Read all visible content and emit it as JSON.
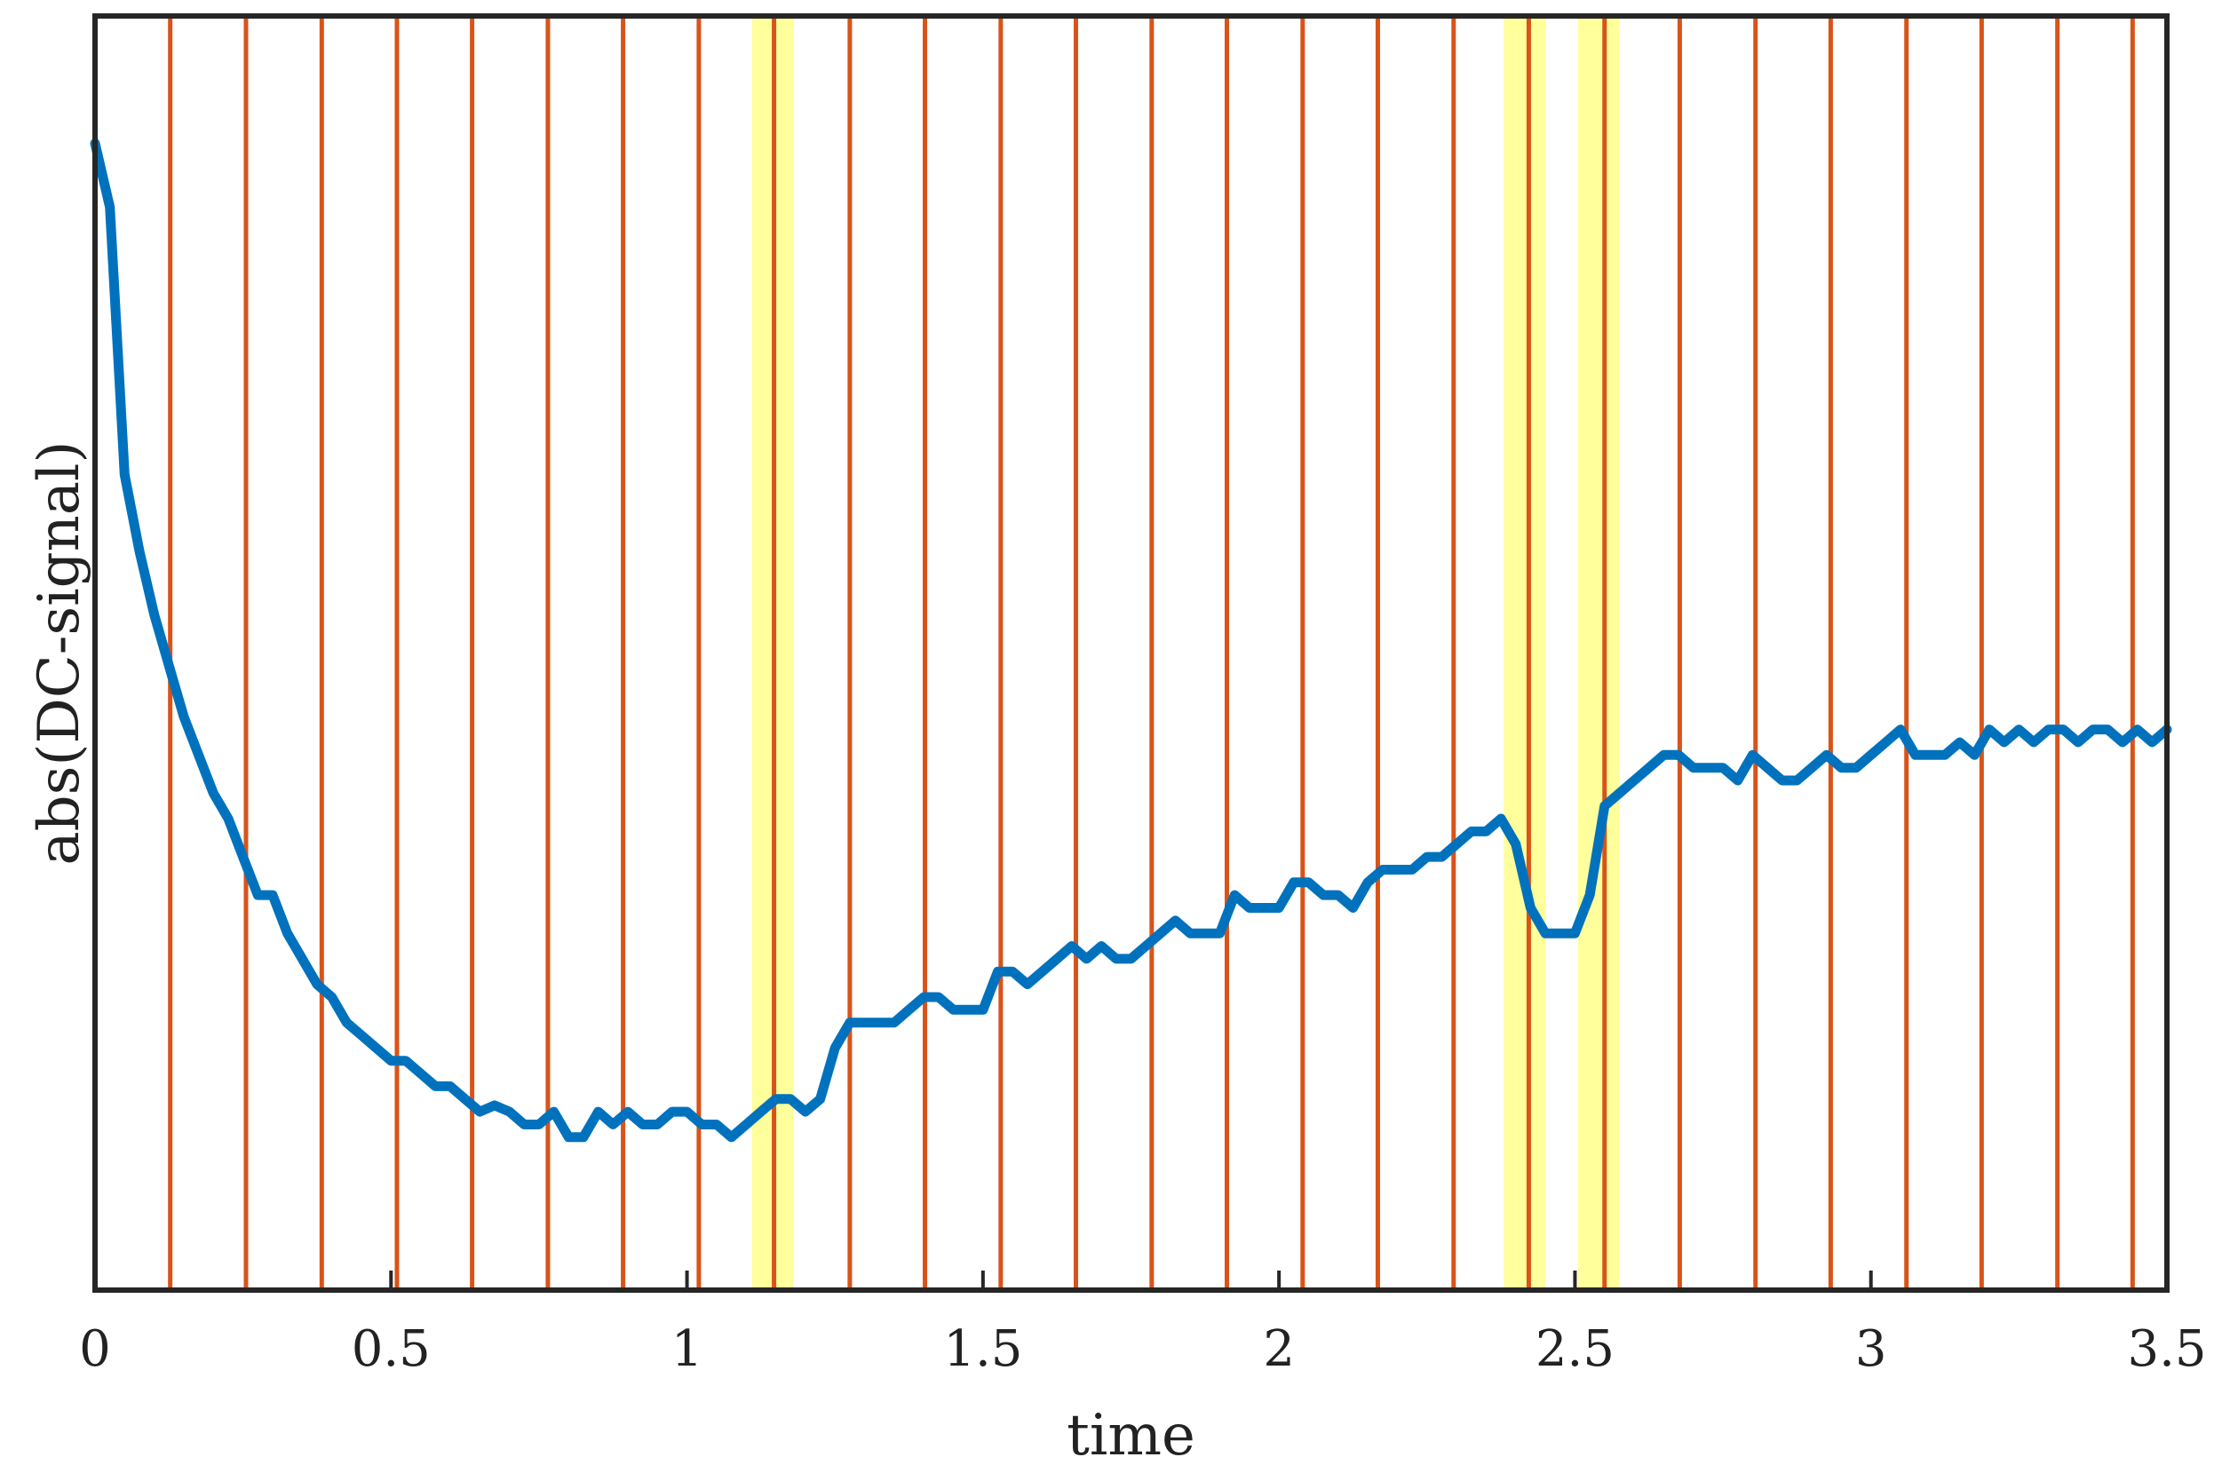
{
  "chart_data": {
    "type": "line",
    "title": "",
    "xlabel": "time",
    "ylabel": "abs(DC-signal)",
    "xlim": [
      0,
      3.5
    ],
    "ylim": [
      0,
      1
    ],
    "y_tick_labels_shown": false,
    "grid": false,
    "legend": "none",
    "x_ticks": [
      0,
      0.5,
      1,
      1.5,
      2,
      2.5,
      3,
      3.5
    ],
    "x_tick_labels": [
      "0",
      "0.5",
      "1",
      "1.5",
      "2",
      "2.5",
      "3",
      "3.5"
    ],
    "colors": {
      "signal": "#0072BD",
      "markers": "#D95319",
      "highlight": "#FFFF66",
      "axes": "#262626"
    },
    "vertical_markers": [
      0.0,
      0.127,
      0.255,
      0.383,
      0.51,
      0.637,
      0.765,
      0.892,
      1.02,
      1.147,
      1.275,
      1.402,
      1.53,
      1.657,
      1.785,
      1.912,
      2.04,
      2.167,
      2.295,
      2.422,
      2.55,
      2.677,
      2.805,
      2.932,
      3.06,
      3.187,
      3.315,
      3.442
    ],
    "highlight_bands": [
      [
        1.11,
        1.18
      ],
      [
        2.38,
        2.45
      ],
      [
        2.505,
        2.575
      ]
    ],
    "series": [
      {
        "x": [
          0,
          0.025,
          0.05,
          0.075,
          0.1,
          0.125,
          0.15,
          0.175,
          0.2,
          0.225,
          0.25,
          0.275,
          0.3,
          0.325,
          0.35,
          0.375,
          0.4,
          0.425,
          0.45,
          0.475,
          0.5,
          0.525,
          0.55,
          0.575,
          0.6,
          0.625,
          0.65,
          0.675,
          0.7,
          0.725,
          0.75,
          0.775,
          0.8,
          0.825,
          0.85,
          0.875,
          0.9,
          0.925,
          0.95,
          0.975,
          1.0,
          1.025,
          1.05,
          1.075,
          1.1,
          1.125,
          1.15,
          1.175,
          1.2,
          1.225,
          1.25,
          1.275,
          1.3,
          1.325,
          1.35,
          1.375,
          1.4,
          1.425,
          1.45,
          1.475,
          1.5,
          1.525,
          1.55,
          1.575,
          1.6,
          1.625,
          1.65,
          1.675,
          1.7,
          1.725,
          1.75,
          1.775,
          1.8,
          1.825,
          1.85,
          1.875,
          1.9,
          1.925,
          1.95,
          1.975,
          2.0,
          2.025,
          2.05,
          2.075,
          2.1,
          2.125,
          2.15,
          2.175,
          2.2,
          2.225,
          2.25,
          2.275,
          2.3,
          2.325,
          2.35,
          2.375,
          2.4,
          2.425,
          2.45,
          2.475,
          2.5,
          2.525,
          2.55,
          2.575,
          2.6,
          2.625,
          2.65,
          2.675,
          2.7,
          2.725,
          2.75,
          2.775,
          2.8,
          2.825,
          2.85,
          2.875,
          2.9,
          2.925,
          2.95,
          2.975,
          3.0,
          3.025,
          3.05,
          3.075,
          3.1,
          3.125,
          3.15,
          3.175,
          3.2,
          3.225,
          3.25,
          3.275,
          3.3,
          3.325,
          3.35,
          3.375,
          3.4,
          3.425,
          3.45,
          3.475,
          3.5
        ],
        "values": [
          0.9,
          0.85,
          0.64,
          0.58,
          0.53,
          0.49,
          0.45,
          0.42,
          0.39,
          0.37,
          0.34,
          0.31,
          0.31,
          0.28,
          0.26,
          0.24,
          0.23,
          0.21,
          0.2,
          0.19,
          0.18,
          0.18,
          0.17,
          0.16,
          0.16,
          0.15,
          0.14,
          0.145,
          0.14,
          0.13,
          0.13,
          0.14,
          0.12,
          0.12,
          0.14,
          0.13,
          0.14,
          0.13,
          0.13,
          0.14,
          0.14,
          0.13,
          0.13,
          0.12,
          0.13,
          0.14,
          0.15,
          0.15,
          0.14,
          0.15,
          0.19,
          0.21,
          0.21,
          0.21,
          0.21,
          0.22,
          0.23,
          0.23,
          0.22,
          0.22,
          0.22,
          0.25,
          0.25,
          0.24,
          0.25,
          0.26,
          0.27,
          0.26,
          0.27,
          0.26,
          0.26,
          0.27,
          0.28,
          0.29,
          0.28,
          0.28,
          0.28,
          0.31,
          0.3,
          0.3,
          0.3,
          0.32,
          0.32,
          0.31,
          0.31,
          0.3,
          0.32,
          0.33,
          0.33,
          0.33,
          0.34,
          0.34,
          0.35,
          0.36,
          0.36,
          0.37,
          0.35,
          0.3,
          0.28,
          0.28,
          0.28,
          0.31,
          0.38,
          0.39,
          0.4,
          0.41,
          0.42,
          0.42,
          0.41,
          0.41,
          0.41,
          0.4,
          0.42,
          0.41,
          0.4,
          0.4,
          0.41,
          0.42,
          0.41,
          0.41,
          0.42,
          0.43,
          0.44,
          0.42,
          0.42,
          0.42,
          0.43,
          0.42,
          0.44,
          0.43,
          0.44,
          0.43,
          0.44,
          0.44,
          0.43,
          0.44,
          0.44,
          0.43,
          0.44,
          0.43,
          0.44
        ]
      }
    ]
  }
}
